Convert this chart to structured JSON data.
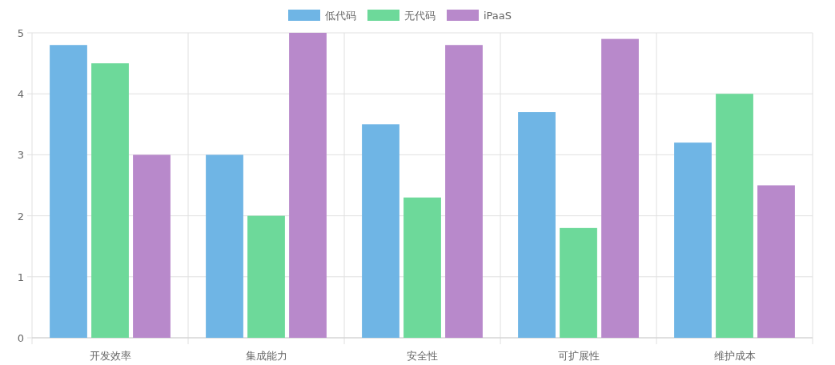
{
  "chart_data": {
    "type": "bar",
    "categories": [
      "开发效率",
      "集成能力",
      "安全性",
      "可扩展性",
      "维护成本"
    ],
    "series": [
      {
        "name": "低代码",
        "color": "#6fb5e5",
        "values": [
          4.8,
          3.0,
          3.5,
          3.7,
          3.2
        ]
      },
      {
        "name": "无代码",
        "color": "#6dd99a",
        "values": [
          4.5,
          2.0,
          2.3,
          1.8,
          4.0
        ]
      },
      {
        "name": "iPaaS",
        "color": "#b889cb",
        "values": [
          3.0,
          5.0,
          4.8,
          4.9,
          2.5
        ]
      }
    ],
    "ylim": [
      0,
      5
    ],
    "yticks": [
      0,
      1,
      2,
      3,
      4,
      5
    ],
    "grid": true,
    "legend": "top"
  }
}
